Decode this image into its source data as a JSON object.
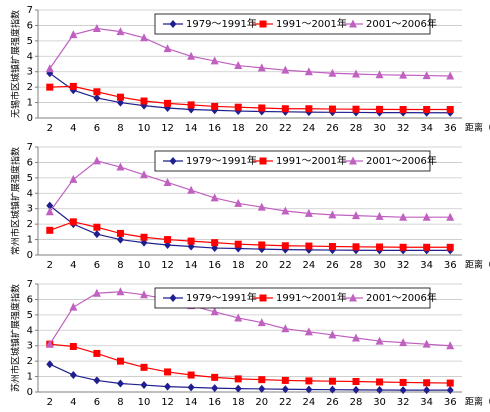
{
  "chart_data": [
    {
      "type": "line",
      "y_label": "无锡市区城镇扩展强度指数",
      "x_label": "距离（km）",
      "categories": [
        "2",
        "4",
        "6",
        "8",
        "10",
        "12",
        "14",
        "16",
        "18",
        "20",
        "22",
        "24",
        "26",
        "28",
        "30",
        "32",
        "34",
        "36"
      ],
      "ylim": [
        0,
        7
      ],
      "yticks": [
        0,
        1,
        2,
        3,
        4,
        5,
        6,
        7
      ],
      "grid": true,
      "legend": "top-right",
      "series": [
        {
          "name": "1979～1991年",
          "color": "#1f1f8f",
          "marker": "diamond",
          "values": [
            2.9,
            1.8,
            1.3,
            1.0,
            0.8,
            0.65,
            0.55,
            0.5,
            0.45,
            0.42,
            0.4,
            0.38,
            0.37,
            0.36,
            0.35,
            0.35,
            0.34,
            0.34
          ]
        },
        {
          "name": "1991～2001年",
          "color": "#ff0000",
          "marker": "square",
          "values": [
            2.0,
            2.05,
            1.7,
            1.35,
            1.1,
            0.95,
            0.85,
            0.75,
            0.7,
            0.65,
            0.6,
            0.6,
            0.58,
            0.57,
            0.56,
            0.55,
            0.55,
            0.55
          ]
        },
        {
          "name": "2001～2006年",
          "color": "#c060c0",
          "marker": "triangle",
          "values": [
            3.2,
            5.4,
            5.8,
            5.6,
            5.2,
            4.5,
            4.0,
            3.7,
            3.4,
            3.25,
            3.1,
            3.0,
            2.9,
            2.85,
            2.8,
            2.78,
            2.75,
            2.72
          ]
        }
      ]
    },
    {
      "type": "line",
      "y_label": "常州市区城镇扩展强度指数",
      "x_label": "距离（km）",
      "categories": [
        "2",
        "4",
        "6",
        "8",
        "10",
        "12",
        "14",
        "16",
        "18",
        "20",
        "22",
        "24",
        "26",
        "28",
        "30",
        "32",
        "34",
        "36"
      ],
      "ylim": [
        0,
        7
      ],
      "yticks": [
        0,
        1,
        2,
        3,
        4,
        5,
        6,
        7
      ],
      "grid": true,
      "legend": "top-right",
      "series": [
        {
          "name": "1979～1991年",
          "color": "#1f1f8f",
          "marker": "diamond",
          "values": [
            3.2,
            2.0,
            1.35,
            1.0,
            0.8,
            0.65,
            0.55,
            0.45,
            0.42,
            0.38,
            0.35,
            0.33,
            0.32,
            0.31,
            0.3,
            0.3,
            0.3,
            0.3
          ]
        },
        {
          "name": "1991～2001年",
          "color": "#ff0000",
          "marker": "square",
          "values": [
            1.6,
            2.15,
            1.8,
            1.4,
            1.15,
            1.0,
            0.9,
            0.8,
            0.7,
            0.65,
            0.6,
            0.58,
            0.55,
            0.53,
            0.52,
            0.5,
            0.5,
            0.5
          ]
        },
        {
          "name": "2001～2006年",
          "color": "#c060c0",
          "marker": "triangle",
          "values": [
            2.8,
            4.9,
            6.1,
            5.7,
            5.2,
            4.7,
            4.2,
            3.7,
            3.35,
            3.1,
            2.85,
            2.7,
            2.6,
            2.55,
            2.5,
            2.45,
            2.45,
            2.45
          ]
        }
      ]
    },
    {
      "type": "line",
      "y_label": "苏州市区城镇扩展强度指数",
      "x_label": "距离（km）",
      "categories": [
        "2",
        "4",
        "6",
        "8",
        "10",
        "12",
        "14",
        "16",
        "18",
        "20",
        "22",
        "24",
        "26",
        "28",
        "30",
        "32",
        "34",
        "36"
      ],
      "ylim": [
        0,
        7
      ],
      "yticks": [
        0,
        1,
        2,
        3,
        4,
        5,
        6,
        7
      ],
      "grid": true,
      "legend": "top-right",
      "series": [
        {
          "name": "1979～1991年",
          "color": "#1f1f8f",
          "marker": "diamond",
          "values": [
            1.8,
            1.1,
            0.75,
            0.55,
            0.45,
            0.35,
            0.3,
            0.25,
            0.22,
            0.2,
            0.18,
            0.16,
            0.15,
            0.14,
            0.13,
            0.12,
            0.12,
            0.12
          ]
        },
        {
          "name": "1991～2001年",
          "color": "#ff0000",
          "marker": "square",
          "values": [
            3.1,
            2.95,
            2.5,
            2.0,
            1.6,
            1.3,
            1.1,
            0.95,
            0.85,
            0.8,
            0.75,
            0.72,
            0.7,
            0.68,
            0.65,
            0.62,
            0.6,
            0.58
          ]
        },
        {
          "name": "2001～2006年",
          "color": "#c060c0",
          "marker": "triangle",
          "values": [
            3.1,
            5.5,
            6.4,
            6.5,
            6.3,
            6.0,
            5.6,
            5.2,
            4.8,
            4.5,
            4.1,
            3.9,
            3.7,
            3.5,
            3.3,
            3.2,
            3.1,
            3.0
          ]
        }
      ]
    }
  ]
}
